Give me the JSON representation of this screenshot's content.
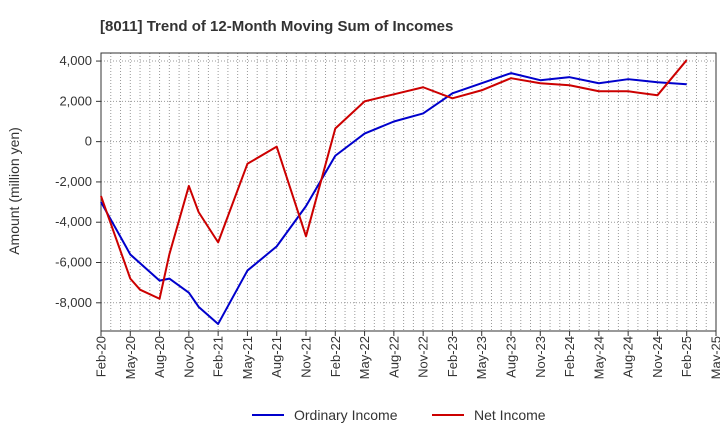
{
  "chart_data": {
    "type": "line",
    "title": "[8011]  Trend of 12-Month Moving Sum of Incomes",
    "xlabel": "",
    "ylabel": "Amount (million yen)",
    "ylim": [
      -9400,
      4400
    ],
    "yticks": [
      4000,
      2000,
      0,
      -2000,
      -4000,
      -6000,
      -8000
    ],
    "ytick_labels": [
      "4,000",
      "2,000",
      "0",
      "-2,000",
      "-4,000",
      "-6,000",
      "-8,000"
    ],
    "x_tick_labels": [
      "Feb-20",
      "May-20",
      "Aug-20",
      "Nov-20",
      "Feb-21",
      "May-21",
      "Aug-21",
      "Nov-21",
      "Feb-22",
      "May-22",
      "Aug-22",
      "Nov-22",
      "Feb-23",
      "May-23",
      "Aug-23",
      "Nov-23",
      "Feb-24",
      "May-24",
      "Aug-24",
      "Nov-24",
      "Feb-25",
      "May-25"
    ],
    "x_start": "Feb-20",
    "n_months": 63,
    "grid": true,
    "legend_position": "bottom",
    "series": [
      {
        "name": "Ordinary Income",
        "color": "#0000cc",
        "points": [
          [
            0,
            -3000
          ],
          [
            3,
            -5600
          ],
          [
            6,
            -6900
          ],
          [
            7,
            -6800
          ],
          [
            9,
            -7500
          ],
          [
            10,
            -8200
          ],
          [
            12,
            -9050
          ],
          [
            15,
            -6400
          ],
          [
            18,
            -5200
          ],
          [
            21,
            -3200
          ],
          [
            24,
            -700
          ],
          [
            27,
            400
          ],
          [
            30,
            1000
          ],
          [
            33,
            1400
          ],
          [
            36,
            2400
          ],
          [
            39,
            2900
          ],
          [
            42,
            3400
          ],
          [
            45,
            3050
          ],
          [
            48,
            3200
          ],
          [
            51,
            2900
          ],
          [
            54,
            3100
          ],
          [
            57,
            2950
          ],
          [
            60,
            2850
          ]
        ]
      },
      {
        "name": "Net Income",
        "color": "#cc0000",
        "points": [
          [
            0,
            -2700
          ],
          [
            3,
            -6800
          ],
          [
            4,
            -7350
          ],
          [
            6,
            -7800
          ],
          [
            7,
            -5600
          ],
          [
            9,
            -2200
          ],
          [
            10,
            -3500
          ],
          [
            12,
            -5000
          ],
          [
            15,
            -1100
          ],
          [
            18,
            -250
          ],
          [
            21,
            -4700
          ],
          [
            24,
            650
          ],
          [
            27,
            2000
          ],
          [
            30,
            2350
          ],
          [
            33,
            2700
          ],
          [
            36,
            2150
          ],
          [
            39,
            2550
          ],
          [
            42,
            3150
          ],
          [
            45,
            2900
          ],
          [
            48,
            2800
          ],
          [
            51,
            2500
          ],
          [
            54,
            2500
          ],
          [
            57,
            2300
          ],
          [
            60,
            4050
          ]
        ]
      }
    ]
  }
}
